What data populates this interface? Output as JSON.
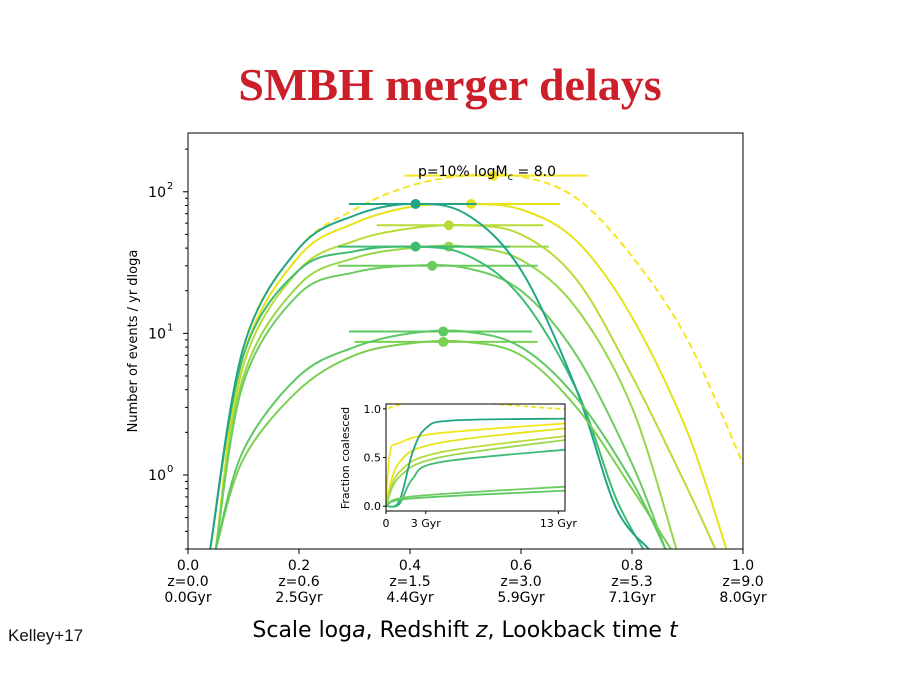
{
  "slide": {
    "title": "SMBH merger delays",
    "credit": "Kelley+17"
  },
  "chart_data": {
    "type": "line",
    "annotation": "p=10% logM",
    "annotation_sub": "c",
    "annotation_tail": " = 8.0",
    "ylabel": "Number of events / yr dloga",
    "xlabel_parts": [
      "Scale log",
      "a",
      ", Redshift ",
      "z",
      ", Lookback time ",
      "t"
    ],
    "x_scale": "linear",
    "y_scale": "log",
    "xlim": [
      0.0,
      1.0
    ],
    "ylim": [
      0.3,
      260
    ],
    "x_ticks": [
      0.0,
      0.2,
      0.4,
      0.6,
      0.8,
      1.0
    ],
    "x_tick_labels": [
      "0.0",
      "0.2",
      "0.4",
      "0.6",
      "0.8",
      "1.0"
    ],
    "z_tick_labels": [
      "z=0.0",
      "z=0.6",
      "z=1.5",
      "z=3.0",
      "z=5.3",
      "z=9.0"
    ],
    "t_tick_labels": [
      "0.0Gyr",
      "2.5Gyr",
      "4.4Gyr",
      "5.9Gyr",
      "7.1Gyr",
      "8.0Gyr"
    ],
    "y_ticks": [
      1,
      10,
      100
    ],
    "y_tick_labels": [
      "10",
      "10",
      "10"
    ],
    "y_tick_exponents": [
      "0",
      "1",
      "2"
    ],
    "series": [
      {
        "color": "#f5e61d",
        "dashed": true,
        "peak_x": 0.55,
        "peak_y": 130,
        "err": [
          0.39,
          0.72
        ],
        "points": [
          [
            0.05,
            0.3
          ],
          [
            0.1,
            8
          ],
          [
            0.2,
            40
          ],
          [
            0.3,
            75
          ],
          [
            0.4,
            110
          ],
          [
            0.5,
            130
          ],
          [
            0.6,
            128
          ],
          [
            0.7,
            90
          ],
          [
            0.8,
            35
          ],
          [
            0.9,
            9
          ],
          [
            1.0,
            1.2
          ]
        ]
      },
      {
        "color": "#e4e419",
        "dashed": false,
        "peak_x": 0.51,
        "peak_y": 82,
        "err": [
          0.35,
          0.67
        ],
        "points": [
          [
            0.05,
            0.3
          ],
          [
            0.1,
            7
          ],
          [
            0.2,
            35
          ],
          [
            0.3,
            60
          ],
          [
            0.4,
            78
          ],
          [
            0.5,
            82
          ],
          [
            0.6,
            75
          ],
          [
            0.7,
            45
          ],
          [
            0.8,
            13
          ],
          [
            0.9,
            2
          ],
          [
            0.97,
            0.3
          ]
        ]
      },
      {
        "color": "#b7dc37",
        "dashed": false,
        "peak_x": 0.47,
        "peak_y": 58,
        "err": [
          0.34,
          0.64
        ],
        "points": [
          [
            0.05,
            0.3
          ],
          [
            0.1,
            6
          ],
          [
            0.2,
            28
          ],
          [
            0.3,
            45
          ],
          [
            0.4,
            55
          ],
          [
            0.5,
            58
          ],
          [
            0.6,
            50
          ],
          [
            0.7,
            24
          ],
          [
            0.8,
            5
          ],
          [
            0.9,
            0.8
          ],
          [
            0.95,
            0.3
          ]
        ]
      },
      {
        "color": "#97d84a",
        "dashed": false,
        "peak_x": 0.47,
        "peak_y": 41,
        "err": [
          0.33,
          0.65
        ],
        "points": [
          [
            0.05,
            0.3
          ],
          [
            0.1,
            5
          ],
          [
            0.2,
            22
          ],
          [
            0.3,
            34
          ],
          [
            0.4,
            40
          ],
          [
            0.5,
            41
          ],
          [
            0.6,
            33
          ],
          [
            0.7,
            15
          ],
          [
            0.8,
            3
          ],
          [
            0.88,
            0.3
          ]
        ]
      },
      {
        "color": "#6ccc5f",
        "dashed": false,
        "peak_x": 0.44,
        "peak_y": 30,
        "err": [
          0.27,
          0.63
        ],
        "points": [
          [
            0.05,
            0.3
          ],
          [
            0.1,
            4.5
          ],
          [
            0.2,
            19
          ],
          [
            0.3,
            27
          ],
          [
            0.4,
            30
          ],
          [
            0.5,
            29
          ],
          [
            0.6,
            20
          ],
          [
            0.7,
            7
          ],
          [
            0.8,
            1.2
          ],
          [
            0.86,
            0.3
          ]
        ]
      },
      {
        "color": "#3fbc73",
        "dashed": false,
        "peak_x": 0.41,
        "peak_y": 41,
        "err": [
          0.27,
          0.58
        ],
        "points": [
          [
            0.04,
            0.3
          ],
          [
            0.1,
            7
          ],
          [
            0.2,
            28
          ],
          [
            0.3,
            38
          ],
          [
            0.4,
            41
          ],
          [
            0.5,
            36
          ],
          [
            0.6,
            18
          ],
          [
            0.7,
            4
          ],
          [
            0.77,
            0.7
          ],
          [
            0.82,
            0.3
          ]
        ]
      },
      {
        "color": "#21a585",
        "dashed": false,
        "peak_x": 0.41,
        "peak_y": 82,
        "err": [
          0.29,
          0.52
        ],
        "points": [
          [
            0.04,
            0.3
          ],
          [
            0.1,
            8
          ],
          [
            0.2,
            40
          ],
          [
            0.3,
            68
          ],
          [
            0.4,
            82
          ],
          [
            0.5,
            70
          ],
          [
            0.6,
            28
          ],
          [
            0.7,
            4
          ],
          [
            0.77,
            0.6
          ],
          [
            0.83,
            0.3
          ]
        ]
      },
      {
        "color": "#7ad151",
        "dashed": false,
        "peak_x": 0.46,
        "peak_y": 8.7,
        "err": [
          0.3,
          0.63
        ],
        "points": [
          [
            0.05,
            0.3
          ],
          [
            0.1,
            1.3
          ],
          [
            0.2,
            4
          ],
          [
            0.3,
            7
          ],
          [
            0.4,
            8.5
          ],
          [
            0.5,
            8.7
          ],
          [
            0.6,
            7
          ],
          [
            0.7,
            3
          ],
          [
            0.8,
            0.8
          ],
          [
            0.87,
            0.3
          ]
        ]
      },
      {
        "color": "#5ec962",
        "dashed": false,
        "peak_x": 0.46,
        "peak_y": 10.3,
        "err": [
          0.29,
          0.62
        ],
        "points": [
          [
            0.05,
            0.3
          ],
          [
            0.1,
            1.5
          ],
          [
            0.2,
            5
          ],
          [
            0.3,
            8
          ],
          [
            0.4,
            10
          ],
          [
            0.5,
            10.3
          ],
          [
            0.6,
            8
          ],
          [
            0.7,
            3.5
          ],
          [
            0.8,
            0.9
          ],
          [
            0.86,
            0.3
          ]
        ]
      }
    ],
    "inset": {
      "ylabel": "Fraction coalesced",
      "y_ticks": [
        0.0,
        0.5,
        1.0
      ],
      "y_tick_labels": [
        "0.0",
        "0.5",
        "1.0"
      ],
      "x_tick_labels": [
        "0",
        "3 Gyr",
        "13 Gyr"
      ],
      "x_ticks": [
        0,
        3,
        13
      ],
      "xlim": [
        0,
        13.5
      ],
      "ylim": [
        -0.05,
        1.05
      ],
      "series": [
        {
          "color": "#f5e61d",
          "dashed": true,
          "points": [
            [
              0,
              0
            ],
            [
              0.1,
              1
            ],
            [
              13.5,
              1
            ]
          ]
        },
        {
          "color": "#f5e61d",
          "dashed": false,
          "points": [
            [
              0,
              0
            ],
            [
              0.3,
              0.55
            ],
            [
              1,
              0.65
            ],
            [
              4,
              0.75
            ],
            [
              13.5,
              0.85
            ]
          ]
        },
        {
          "color": "#e4e419",
          "dashed": false,
          "points": [
            [
              0,
              0
            ],
            [
              1,
              0.45
            ],
            [
              4,
              0.65
            ],
            [
              13.5,
              0.8
            ]
          ]
        },
        {
          "color": "#b7dc37",
          "dashed": false,
          "points": [
            [
              0,
              0
            ],
            [
              1,
              0.35
            ],
            [
              4,
              0.55
            ],
            [
              13.5,
              0.72
            ]
          ]
        },
        {
          "color": "#97d84a",
          "dashed": false,
          "points": [
            [
              0,
              0
            ],
            [
              1,
              0.3
            ],
            [
              4,
              0.5
            ],
            [
              13.5,
              0.68
            ]
          ]
        },
        {
          "color": "#21a585",
          "dashed": false,
          "points": [
            [
              0,
              0
            ],
            [
              1,
              0.05
            ],
            [
              2,
              0.55
            ],
            [
              3,
              0.8
            ],
            [
              5,
              0.88
            ],
            [
              13.5,
              0.9
            ]
          ]
        },
        {
          "color": "#3fbc73",
          "dashed": false,
          "points": [
            [
              0,
              0
            ],
            [
              1,
              0.02
            ],
            [
              2,
              0.28
            ],
            [
              4,
              0.45
            ],
            [
              13.5,
              0.58
            ]
          ]
        },
        {
          "color": "#6ccc5f",
          "dashed": false,
          "points": [
            [
              0,
              0
            ],
            [
              2,
              0.1
            ],
            [
              13.5,
              0.2
            ]
          ]
        },
        {
          "color": "#5ec962",
          "dashed": false,
          "points": [
            [
              0,
              0
            ],
            [
              2,
              0.08
            ],
            [
              13.5,
              0.16
            ]
          ]
        }
      ]
    }
  }
}
